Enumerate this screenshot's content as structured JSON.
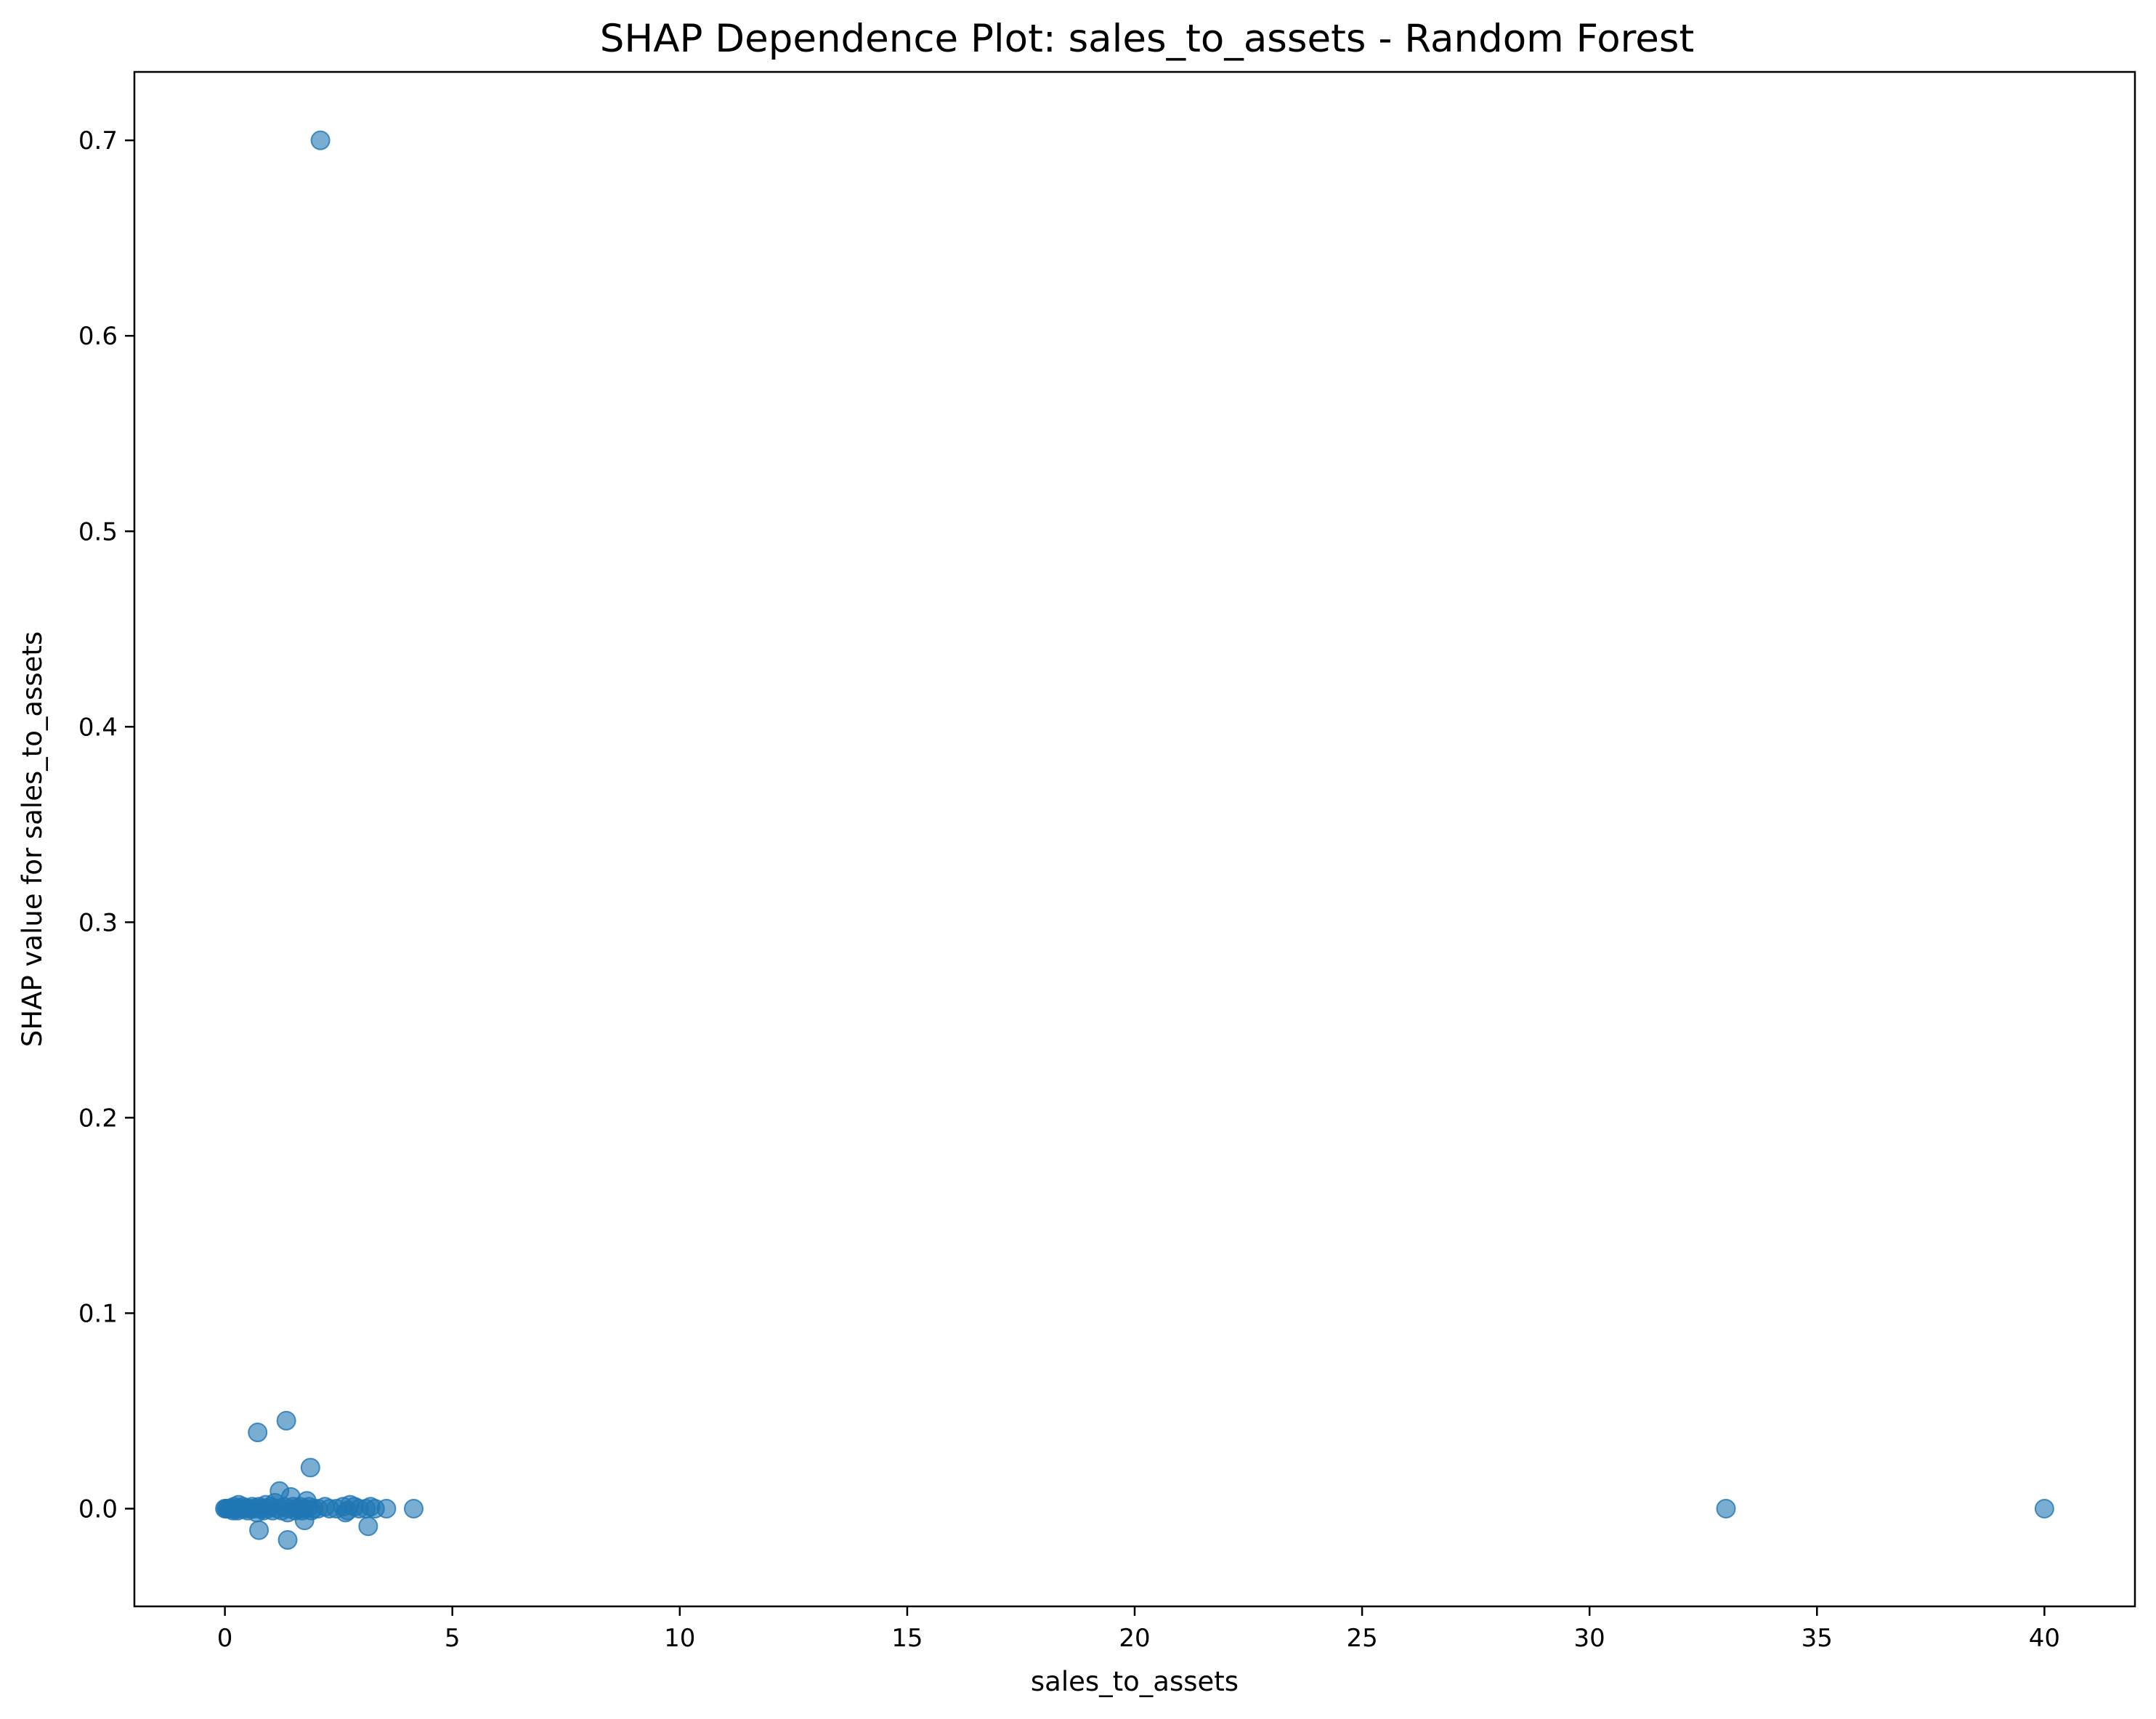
{
  "chart_data": {
    "type": "scatter",
    "title": "SHAP Dependence Plot: sales_to_assets - Random Forest",
    "xlabel": "sales_to_assets",
    "ylabel": "SHAP value for sales_to_assets",
    "xlim": [
      -1.99,
      41.99
    ],
    "ylim": [
      -0.05,
      0.735
    ],
    "xticks": [
      0,
      5,
      10,
      15,
      20,
      25,
      30,
      35,
      40
    ],
    "xtick_labels": [
      "0",
      "5",
      "10",
      "15",
      "20",
      "25",
      "30",
      "35",
      "40"
    ],
    "yticks": [
      0.0,
      0.1,
      0.2,
      0.3,
      0.4,
      0.5,
      0.6,
      0.7
    ],
    "ytick_labels": [
      "0.0",
      "0.1",
      "0.2",
      "0.3",
      "0.4",
      "0.5",
      "0.6",
      "0.7"
    ],
    "grid": false,
    "legend": "none",
    "marker_color": "#1f77b4",
    "marker_alpha": 0.6,
    "points": [
      [
        2.1,
        0.7
      ],
      [
        1.35,
        0.045
      ],
      [
        0.72,
        0.039
      ],
      [
        1.88,
        0.021
      ],
      [
        1.2,
        0.009
      ],
      [
        1.45,
        0.006
      ],
      [
        1.8,
        0.004
      ],
      [
        1.1,
        0.003
      ],
      [
        0.3,
        0.002
      ],
      [
        2.75,
        0.002
      ],
      [
        0.0,
        0.0
      ],
      [
        0.03,
        0.0
      ],
      [
        0.06,
        0.0
      ],
      [
        0.09,
        0.0
      ],
      [
        0.12,
        0.0
      ],
      [
        0.15,
        0.0
      ],
      [
        0.18,
        -0.001
      ],
      [
        0.2,
        0.001
      ],
      [
        0.25,
        0.0
      ],
      [
        0.28,
        -0.001
      ],
      [
        0.35,
        0.0
      ],
      [
        0.4,
        0.001
      ],
      [
        0.45,
        0.0
      ],
      [
        0.5,
        -0.001
      ],
      [
        0.55,
        0.0
      ],
      [
        0.6,
        0.001
      ],
      [
        0.65,
        0.0
      ],
      [
        0.7,
        -0.002
      ],
      [
        0.75,
        0.001
      ],
      [
        0.8,
        0.0
      ],
      [
        0.85,
        -0.001
      ],
      [
        0.9,
        0.002
      ],
      [
        0.95,
        0.0
      ],
      [
        1.0,
        0.001
      ],
      [
        1.05,
        -0.001
      ],
      [
        1.15,
        0.0
      ],
      [
        1.25,
        -0.001
      ],
      [
        1.3,
        0.001
      ],
      [
        1.38,
        -0.002
      ],
      [
        1.4,
        0.0
      ],
      [
        1.5,
        0.001
      ],
      [
        1.55,
        -0.001
      ],
      [
        1.6,
        0.0
      ],
      [
        1.65,
        0.001
      ],
      [
        1.7,
        -0.001
      ],
      [
        1.75,
        0.0
      ],
      [
        1.85,
        0.001
      ],
      [
        1.9,
        -0.001
      ],
      [
        1.95,
        0.0
      ],
      [
        2.05,
        0.0
      ],
      [
        2.2,
        0.001
      ],
      [
        2.3,
        0.0
      ],
      [
        2.45,
        0.0
      ],
      [
        2.6,
        0.001
      ],
      [
        2.7,
        -0.001
      ],
      [
        2.65,
        -0.002
      ],
      [
        2.85,
        0.001
      ],
      [
        2.95,
        0.0
      ],
      [
        3.1,
        0.0
      ],
      [
        3.2,
        0.001
      ],
      [
        3.3,
        0.0
      ],
      [
        3.55,
        0.0
      ],
      [
        4.15,
        0.0
      ],
      [
        0.75,
        -0.011
      ],
      [
        1.38,
        -0.016
      ],
      [
        1.75,
        -0.006
      ],
      [
        3.15,
        -0.009
      ],
      [
        33.0,
        0.0
      ],
      [
        40.0,
        0.0
      ]
    ]
  }
}
